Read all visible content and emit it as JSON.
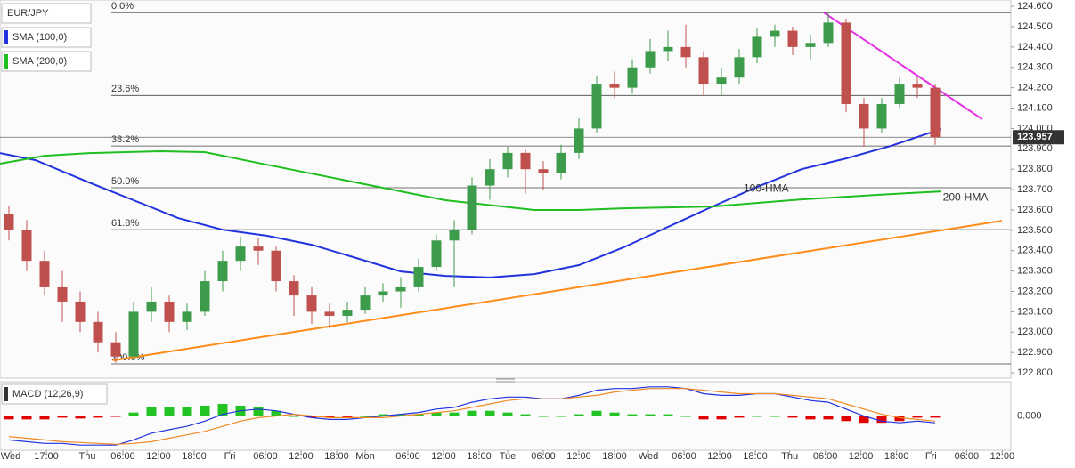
{
  "chart_data": [
    {
      "type": "candlestick",
      "title": "EUR/JPY",
      "up_color": "#3d9b4c",
      "down_color": "#c0504d",
      "x": [
        1.5,
        4.5,
        7.5,
        10.5,
        13.5,
        16.5,
        19.5,
        22.5,
        25.5,
        28.5,
        31.5,
        34.5,
        37.5,
        40.5,
        43.5,
        46.5,
        49.5,
        52.5,
        55.5,
        58.5,
        61.5,
        64.5,
        67.5,
        70.5,
        73.5,
        76.5,
        79.5,
        82.5,
        85.5,
        88.5,
        91.5,
        94.5,
        97.5,
        100.5,
        103.5,
        106.5,
        109.5,
        112.5,
        115.5,
        118.5,
        121.5,
        124.5,
        127.5,
        130.5,
        133.5,
        136.5,
        139.5,
        142.5,
        145.5,
        148.5,
        151.5,
        154.5,
        157.5
      ],
      "ohlc": [
        [
          123.58,
          123.62,
          123.45,
          123.5
        ],
        [
          123.5,
          123.55,
          123.3,
          123.35
        ],
        [
          123.35,
          123.4,
          123.18,
          123.22
        ],
        [
          123.22,
          123.3,
          123.05,
          123.15
        ],
        [
          123.15,
          123.2,
          123.0,
          123.05
        ],
        [
          123.05,
          123.1,
          122.9,
          122.95
        ],
        [
          122.95,
          123.0,
          122.85,
          122.88
        ],
        [
          122.88,
          123.15,
          122.86,
          123.1
        ],
        [
          123.1,
          123.22,
          123.05,
          123.15
        ],
        [
          123.15,
          123.18,
          123.0,
          123.05
        ],
        [
          123.05,
          123.14,
          123.01,
          123.1
        ],
        [
          123.1,
          123.3,
          123.08,
          123.25
        ],
        [
          123.25,
          123.4,
          123.2,
          123.35
        ],
        [
          123.35,
          123.47,
          123.3,
          123.42
        ],
        [
          123.42,
          123.46,
          123.33,
          123.4
        ],
        [
          123.4,
          123.42,
          123.2,
          123.25
        ],
        [
          123.25,
          123.28,
          123.08,
          123.18
        ],
        [
          123.18,
          123.22,
          123.04,
          123.1
        ],
        [
          123.1,
          123.14,
          123.02,
          123.08
        ],
        [
          123.08,
          123.15,
          123.05,
          123.11
        ],
        [
          123.11,
          123.22,
          123.09,
          123.18
        ],
        [
          123.18,
          123.24,
          123.15,
          123.2
        ],
        [
          123.2,
          123.27,
          123.12,
          123.22
        ],
        [
          123.22,
          123.36,
          123.2,
          123.32
        ],
        [
          123.32,
          123.48,
          123.3,
          123.45
        ],
        [
          123.45,
          123.55,
          123.22,
          123.5
        ],
        [
          123.5,
          123.76,
          123.48,
          123.72
        ],
        [
          123.72,
          123.85,
          123.65,
          123.8
        ],
        [
          123.8,
          123.91,
          123.76,
          123.88
        ],
        [
          123.88,
          123.9,
          123.68,
          123.8
        ],
        [
          123.8,
          123.84,
          123.7,
          123.78
        ],
        [
          123.78,
          123.92,
          123.75,
          123.88
        ],
        [
          123.88,
          124.05,
          123.85,
          124.0
        ],
        [
          124.0,
          124.26,
          123.98,
          124.22
        ],
        [
          124.22,
          124.28,
          124.15,
          124.2
        ],
        [
          124.2,
          124.34,
          124.17,
          124.3
        ],
        [
          124.3,
          124.44,
          124.27,
          124.38
        ],
        [
          124.38,
          124.48,
          124.33,
          124.4
        ],
        [
          124.4,
          124.51,
          124.3,
          124.35
        ],
        [
          124.35,
          124.38,
          124.16,
          124.22
        ],
        [
          124.22,
          124.3,
          124.16,
          124.25
        ],
        [
          124.25,
          124.39,
          124.22,
          124.35
        ],
        [
          124.35,
          124.49,
          124.32,
          124.45
        ],
        [
          124.45,
          124.51,
          124.4,
          124.48
        ],
        [
          124.48,
          124.5,
          124.36,
          124.4
        ],
        [
          124.4,
          124.46,
          124.34,
          124.42
        ],
        [
          124.42,
          124.57,
          124.4,
          124.52
        ],
        [
          124.52,
          124.54,
          124.08,
          124.12
        ],
        [
          124.12,
          124.15,
          123.91,
          124.0
        ],
        [
          124.0,
          124.15,
          123.98,
          124.12
        ],
        [
          124.12,
          124.25,
          124.1,
          124.22
        ],
        [
          124.22,
          124.25,
          124.15,
          124.2
        ],
        [
          124.2,
          124.22,
          123.92,
          123.957
        ]
      ],
      "series": [
        {
          "name": "SMA (100,0)",
          "label": "100-HMA",
          "color": "#2233dd",
          "x": [
            0,
            6,
            15,
            22.5,
            30,
            37.5,
            45,
            52.5,
            60,
            67.5,
            75,
            82.5,
            90,
            97.5,
            105,
            112.5,
            120,
            127.5,
            135,
            142.5,
            150,
            158.5
          ],
          "values": [
            123.879,
            123.844,
            123.735,
            123.648,
            123.56,
            123.503,
            123.473,
            123.429,
            123.364,
            123.298,
            123.276,
            123.268,
            123.285,
            123.329,
            123.416,
            123.517,
            123.617,
            123.713,
            123.8,
            123.853,
            123.914,
            123.997
          ]
        },
        {
          "name": "SMA (200,0)",
          "label": "200-HMA",
          "color": "#1fbf1f",
          "x": [
            0,
            7.5,
            15,
            27,
            34.5,
            45,
            60,
            75,
            90,
            97.5,
            105,
            120,
            135,
            150,
            158.5
          ],
          "values": [
            123.827,
            123.866,
            123.879,
            123.888,
            123.884,
            123.822,
            123.735,
            123.648,
            123.6,
            123.6,
            123.608,
            123.617,
            123.652,
            123.678,
            123.691
          ]
        }
      ],
      "trendlines": [
        {
          "color": "#ff8c1a",
          "x": [
            19,
            168.75
          ],
          "values": [
            122.861,
            123.547
          ]
        },
        {
          "color": "#e62ee6",
          "x": [
            138.75,
            165.45
          ],
          "values": [
            124.569,
            124.045
          ]
        }
      ],
      "fib_levels": [
        {
          "label": "0.0%",
          "value": 124.569
        },
        {
          "label": "23.6%",
          "value": 124.162
        },
        {
          "label": "38.2%",
          "value": 123.914
        },
        {
          "label": "50.0%",
          "value": 123.709
        },
        {
          "label": "61.8%",
          "value": 123.503
        },
        {
          "label": "100.0%",
          "value": 122.844
        }
      ],
      "last": 123.957,
      "xlim": [
        0,
        170.25
      ],
      "ylim": [
        122.774,
        124.631
      ],
      "yticks": [
        {
          "value": 124.6,
          "label": "124.600"
        },
        {
          "value": 124.5,
          "label": "124.500"
        },
        {
          "value": 124.4,
          "label": "124.400"
        },
        {
          "value": 124.3,
          "label": "124.300"
        },
        {
          "value": 124.2,
          "label": "124.200"
        },
        {
          "value": 124.1,
          "label": "124.100"
        },
        {
          "value": 124.0,
          "label": "124.000"
        },
        {
          "value": 123.9,
          "label": "123.900"
        },
        {
          "value": 123.8,
          "label": "123.800"
        },
        {
          "value": 123.7,
          "label": "123.700"
        },
        {
          "value": 123.6,
          "label": "123.600"
        },
        {
          "value": 123.5,
          "label": "123.500"
        },
        {
          "value": 123.4,
          "label": "123.400"
        },
        {
          "value": 123.3,
          "label": "123.300"
        },
        {
          "value": 123.2,
          "label": "123.200"
        },
        {
          "value": 123.1,
          "label": "123.100"
        },
        {
          "value": 123.0,
          "label": "123.000"
        },
        {
          "value": 122.9,
          "label": "122.900"
        },
        {
          "value": 122.8,
          "label": "122.800"
        }
      ]
    },
    {
      "type": "macd",
      "title": "MACD (12,26,9)",
      "x": [
        1.5,
        4.5,
        7.5,
        10.5,
        13.5,
        16.5,
        19.5,
        22.5,
        25.5,
        28.5,
        31.5,
        34.5,
        37.5,
        40.5,
        43.5,
        46.5,
        49.5,
        52.5,
        55.5,
        58.5,
        61.5,
        64.5,
        67.5,
        70.5,
        73.5,
        76.5,
        79.5,
        82.5,
        85.5,
        88.5,
        91.5,
        94.5,
        97.5,
        100.5,
        103.5,
        106.5,
        109.5,
        112.5,
        115.5,
        118.5,
        121.5,
        124.5,
        127.5,
        130.5,
        133.5,
        136.5,
        139.5,
        142.5,
        145.5,
        148.5,
        151.5,
        154.5,
        157.5
      ],
      "lines": [
        {
          "color": "#2233dd",
          "values": [
            -0.14,
            -0.15,
            -0.16,
            -0.16,
            -0.17,
            -0.17,
            -0.17,
            -0.14,
            -0.1,
            -0.08,
            -0.06,
            -0.03,
            0.01,
            0.03,
            0.04,
            0.03,
            0.01,
            -0.01,
            -0.02,
            -0.02,
            -0.01,
            0.0,
            0.01,
            0.02,
            0.04,
            0.05,
            0.08,
            0.1,
            0.11,
            0.11,
            0.1,
            0.1,
            0.12,
            0.15,
            0.16,
            0.16,
            0.17,
            0.17,
            0.16,
            0.13,
            0.12,
            0.12,
            0.13,
            0.13,
            0.11,
            0.09,
            0.08,
            0.04,
            0.0,
            -0.03,
            -0.04,
            -0.03,
            -0.04
          ]
        },
        {
          "color": "#f08a24",
          "values": [
            -0.12,
            -0.13,
            -0.14,
            -0.15,
            -0.155,
            -0.16,
            -0.165,
            -0.16,
            -0.15,
            -0.13,
            -0.11,
            -0.09,
            -0.06,
            -0.03,
            -0.01,
            0.0,
            0.01,
            0.0,
            -0.01,
            -0.01,
            -0.01,
            -0.01,
            0.0,
            0.01,
            0.02,
            0.03,
            0.05,
            0.07,
            0.09,
            0.1,
            0.1,
            0.1,
            0.11,
            0.12,
            0.14,
            0.15,
            0.16,
            0.16,
            0.16,
            0.15,
            0.14,
            0.13,
            0.13,
            0.13,
            0.12,
            0.11,
            0.1,
            0.07,
            0.04,
            0.01,
            -0.01,
            -0.02,
            -0.03
          ]
        }
      ],
      "histogram": {
        "up_color": "#22c322",
        "down_color": "#e00000",
        "values": [
          -0.02,
          -0.02,
          -0.02,
          -0.01,
          -0.015,
          -0.01,
          -0.005,
          0.02,
          0.05,
          0.05,
          0.05,
          0.06,
          0.07,
          0.06,
          0.05,
          0.03,
          0.0,
          -0.01,
          -0.01,
          -0.01,
          0.0,
          0.01,
          0.01,
          0.01,
          0.02,
          0.02,
          0.03,
          0.03,
          0.02,
          0.01,
          0.0,
          0.0,
          0.01,
          0.03,
          0.02,
          0.01,
          0.01,
          0.01,
          0.0,
          -0.02,
          -0.02,
          -0.01,
          0.0,
          0.0,
          -0.01,
          -0.02,
          -0.02,
          -0.03,
          -0.04,
          -0.04,
          -0.03,
          -0.01,
          -0.01
        ]
      },
      "xlim": [
        0,
        170.25
      ],
      "ylim": [
        -0.2,
        0.2
      ],
      "yticks": [
        {
          "value": 0,
          "label": "0.000"
        }
      ],
      "xticks": [
        {
          "value": 1.8,
          "label": "Wed"
        },
        {
          "value": 7.8,
          "label": "17:00"
        },
        {
          "value": 14.7,
          "label": "Thu"
        },
        {
          "value": 20.7,
          "label": "06:00"
        },
        {
          "value": 26.7,
          "label": "12:00"
        },
        {
          "value": 32.7,
          "label": "18:00"
        },
        {
          "value": 38.7,
          "label": "Fri"
        },
        {
          "value": 44.7,
          "label": "06:00"
        },
        {
          "value": 50.7,
          "label": "12:00"
        },
        {
          "value": 56.7,
          "label": "18:00"
        },
        {
          "value": 61.5,
          "label": "Mon"
        },
        {
          "value": 68.7,
          "label": "06:00"
        },
        {
          "value": 74.7,
          "label": "12:00"
        },
        {
          "value": 80.7,
          "label": "18:00"
        },
        {
          "value": 85.5,
          "label": "Tue"
        },
        {
          "value": 91.5,
          "label": "06:00"
        },
        {
          "value": 97.5,
          "label": "12:00"
        },
        {
          "value": 103.5,
          "label": "18:00"
        },
        {
          "value": 109.2,
          "label": "Wed"
        },
        {
          "value": 115.2,
          "label": "06:00"
        },
        {
          "value": 121.2,
          "label": "12:00"
        },
        {
          "value": 127.2,
          "label": "18:00"
        },
        {
          "value": 133,
          "label": "Thu"
        },
        {
          "value": 139,
          "label": "06:00"
        },
        {
          "value": 145,
          "label": "12:00"
        },
        {
          "value": 151,
          "label": "18:00"
        },
        {
          "value": 156.8,
          "label": "Fri"
        },
        {
          "value": 162.8,
          "label": "06:00"
        },
        {
          "value": 168.8,
          "label": "12:00"
        }
      ]
    }
  ]
}
